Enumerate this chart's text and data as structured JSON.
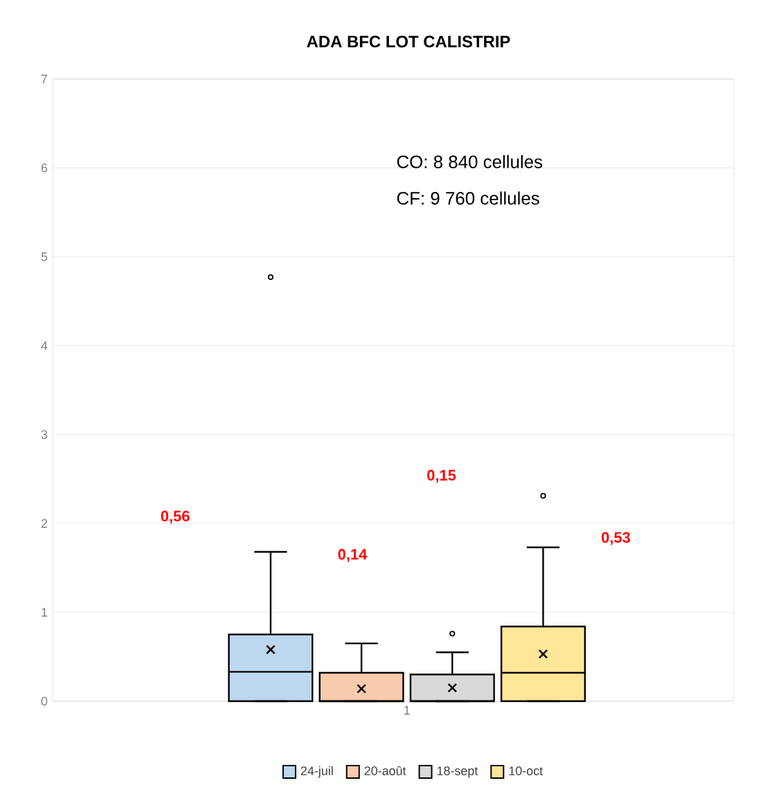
{
  "chart_data": {
    "type": "box",
    "title": "ADA BFC LOT CALISTRIP",
    "categories": [
      "1"
    ],
    "series": [
      {
        "name": "24-juil",
        "color": "#bdd7ee",
        "boxes": [
          {
            "low": 0,
            "q1": 0,
            "median": 0.33,
            "q3": 0.75,
            "high": 1.68,
            "mean": 0.58,
            "outliers": [
              4.77
            ]
          }
        ]
      },
      {
        "name": "20-août",
        "color": "#f8cbad",
        "boxes": [
          {
            "low": 0,
            "q1": 0,
            "median": 0,
            "q3": 0.32,
            "high": 0.65,
            "mean": 0.14
          }
        ]
      },
      {
        "name": "18-sept",
        "color": "#d9d9d9",
        "boxes": [
          {
            "low": 0,
            "q1": 0,
            "median": 0,
            "q3": 0.3,
            "high": 0.55,
            "mean": 0.15,
            "outliers": [
              0.76
            ]
          }
        ]
      },
      {
        "name": "10-oct",
        "color": "#ffe699",
        "boxes": [
          {
            "low": 0,
            "q1": 0,
            "median": 0.32,
            "q3": 0.84,
            "high": 1.73,
            "mean": 0.53,
            "outliers": [
              2.31
            ]
          }
        ]
      }
    ],
    "ylim": [
      0,
      7
    ],
    "yticks": [
      0,
      1,
      2,
      3,
      4,
      5,
      6,
      7
    ],
    "grid": "y",
    "legend": "bottom",
    "marker": "cross",
    "annotations": [
      "CO: 8 840 cellules",
      "CF:  9 760 cellules",
      "0,56",
      "0,14",
      "0,15",
      "0,53"
    ]
  }
}
